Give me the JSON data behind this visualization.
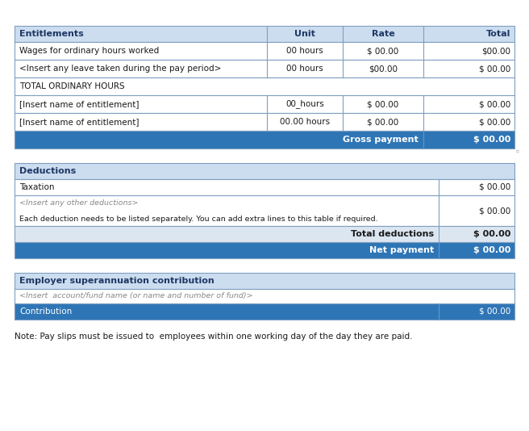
{
  "bg_color": "#ffffff",
  "header_bg": "#ccddf0",
  "blue_row_bg": "#2e75b6",
  "light_blue_bg": "#dce6f1",
  "white_bg": "#ffffff",
  "border_color": "#7f9fc0",
  "header_text_color": "#1f3864",
  "blue_row_text": "#ffffff",
  "normal_text": "#1a1a1a",
  "gray_text": "#808080",
  "table1_rows": [
    [
      "Wages for ordinary hours worked",
      "00 hours",
      "$ 00.00",
      "$00.00"
    ],
    [
      "<Insert any leave taken during the pay period>",
      "00 hours",
      "$00.00",
      "$ 00.00"
    ],
    [
      "TOTAL ORDINARY HOURS",
      "",
      "",
      ""
    ],
    [
      "[Insert name of entitlement]",
      "00_hours",
      "$ 00.00",
      "$ 00.00"
    ],
    [
      "[Insert name of entitlement]",
      "00.00 hours",
      "$ 00.00",
      "$ 00.00"
    ]
  ],
  "gross_payment_label": "Gross payment",
  "gross_payment_value": "$ 00.00",
  "table2_title": "Deductions",
  "taxation_value": "$ 00.00",
  "other_ded_label": "<Insert any other deductions>",
  "other_ded_note": "Each deduction needs to be listed separately. You can add extra lines to this table if required.",
  "other_ded_value": "$ 00.00",
  "total_ded_label": "Total deductions",
  "total_ded_value": "$ 00.00",
  "net_pay_label": "Net payment",
  "net_pay_value": "$ 00.00",
  "table3_title": "Employer superannuation contribution",
  "fund_label": "<Insert  account/fund name (or name and number of fund)>",
  "contribution_label": "Contribution",
  "contribution_value": "$ 00.00",
  "note": "Note: Pay slips must be issued to  employees within one working day of the day they are paid."
}
